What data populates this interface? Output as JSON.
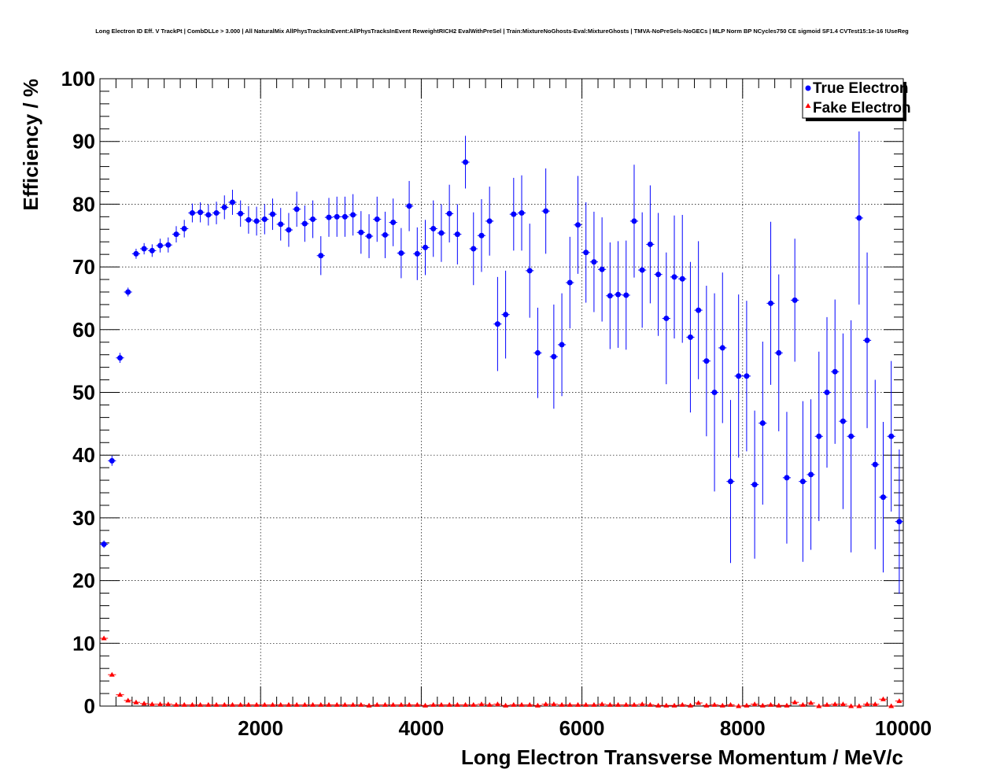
{
  "chart_data": {
    "type": "scatter",
    "title": "Long Electron ID Eff. V TrackPt | CombDLLe > 3.000 | All NaturalMix AllPhysTracksInEvent:AllPhysTracksInEvent ReweightRICH2 EvalWithPreSel | Train:MixtureNoGhosts-Eval:MixtureGhosts | TMVA-NoPreSels-NoGECs | MLP Norm BP NCycles750 CE sigmoid SF1.4 CVTest15:1e-16 !UseReg",
    "xlabel": "Long Electron Transverse Momentum / MeV/c",
    "ylabel": "Efficiency / %",
    "xlim": [
      0,
      10000
    ],
    "ylim": [
      0,
      100
    ],
    "x_ticks": [
      2000,
      4000,
      6000,
      8000,
      10000
    ],
    "y_ticks": [
      0,
      10,
      20,
      30,
      40,
      50,
      60,
      70,
      80,
      90,
      100
    ],
    "grid": true,
    "legend_position": "top-right",
    "series": [
      {
        "name": "True Electron",
        "color": "#0000ff",
        "marker": "circle",
        "x": [
          50,
          150,
          250,
          350,
          450,
          550,
          650,
          750,
          850,
          950,
          1050,
          1150,
          1250,
          1350,
          1450,
          1550,
          1650,
          1750,
          1850,
          1950,
          2050,
          2150,
          2250,
          2350,
          2450,
          2550,
          2650,
          2750,
          2850,
          2950,
          3050,
          3150,
          3250,
          3350,
          3450,
          3550,
          3650,
          3750,
          3850,
          3950,
          4050,
          4150,
          4250,
          4350,
          4450,
          4550,
          4650,
          4750,
          4850,
          4950,
          5050,
          5150,
          5250,
          5350,
          5450,
          5550,
          5650,
          5750,
          5850,
          5950,
          6050,
          6150,
          6250,
          6350,
          6450,
          6550,
          6650,
          6750,
          6850,
          6950,
          7050,
          7150,
          7250,
          7350,
          7450,
          7550,
          7650,
          7750,
          7850,
          7950,
          8050,
          8150,
          8250,
          8350,
          8450,
          8550,
          8650,
          8750,
          8850,
          8950,
          9050,
          9150,
          9250,
          9350,
          9450,
          9550,
          9650,
          9750,
          9850,
          9950
        ],
        "y": [
          25.8,
          39.1,
          55.5,
          66.0,
          72.1,
          72.9,
          72.6,
          73.4,
          73.5,
          75.2,
          76.1,
          78.6,
          78.7,
          78.3,
          78.6,
          79.5,
          80.3,
          78.5,
          77.5,
          77.3,
          77.6,
          78.4,
          76.8,
          75.9,
          79.2,
          76.9,
          77.6,
          71.8,
          77.9,
          78.0,
          78.0,
          78.3,
          75.5,
          74.9,
          77.6,
          75.1,
          77.1,
          72.2,
          79.7,
          72.1,
          73.1,
          76.1,
          75.4,
          78.5,
          75.2,
          86.7,
          72.9,
          75.0,
          77.3,
          60.9,
          62.4,
          78.4,
          78.6,
          69.4,
          56.3,
          78.9,
          55.7,
          57.6,
          67.5,
          76.7,
          72.3,
          70.8,
          69.6,
          65.4,
          65.6,
          65.5,
          77.3,
          69.5,
          73.6,
          68.8,
          61.8,
          68.4,
          68.1,
          58.8,
          63.1,
          55.0,
          50.0,
          57.1,
          35.8,
          52.6,
          52.6,
          35.3,
          45.1,
          64.2,
          56.3,
          36.4,
          64.7,
          35.8,
          36.9,
          43.0,
          50.0,
          53.3,
          45.4,
          43.0,
          77.8,
          58.3,
          38.5,
          33.3,
          43.0,
          29.4
        ],
        "y_err": [
          0.6,
          0.8,
          0.8,
          0.7,
          0.8,
          0.9,
          1.0,
          1.1,
          1.2,
          1.3,
          1.4,
          1.5,
          1.6,
          1.7,
          1.8,
          1.9,
          2.0,
          2.1,
          2.2,
          2.3,
          2.4,
          2.5,
          2.6,
          2.7,
          2.8,
          2.9,
          3.0,
          3.1,
          3.1,
          3.2,
          3.2,
          3.3,
          3.4,
          3.5,
          3.6,
          3.7,
          3.8,
          4.0,
          4.0,
          4.2,
          4.4,
          4.5,
          4.6,
          4.6,
          4.8,
          4.2,
          5.8,
          5.8,
          5.5,
          7.5,
          7.0,
          5.8,
          6.0,
          7.5,
          7.2,
          6.8,
          8.3,
          8.2,
          7.3,
          7.8,
          8.0,
          8.0,
          8.3,
          8.5,
          8.5,
          8.7,
          9.0,
          9.2,
          9.4,
          9.8,
          10.5,
          9.8,
          10.2,
          12.0,
          11.0,
          12.0,
          15.8,
          12.0,
          13.0,
          13.0,
          12.0,
          11.8,
          13.0,
          13.0,
          12.5,
          10.5,
          9.8,
          12.8,
          12.0,
          13.5,
          12.0,
          11.5,
          14.0,
          18.5,
          13.8,
          14.0,
          13.5,
          12.0,
          12.0,
          11.5
        ]
      },
      {
        "name": "Fake Electron",
        "color": "#ff0000",
        "marker": "triangle",
        "x": [
          50,
          150,
          250,
          350,
          450,
          550,
          650,
          750,
          850,
          950,
          1050,
          1150,
          1250,
          1350,
          1450,
          1550,
          1650,
          1750,
          1850,
          1950,
          2050,
          2150,
          2250,
          2350,
          2450,
          2550,
          2650,
          2750,
          2850,
          2950,
          3050,
          3150,
          3250,
          3350,
          3450,
          3550,
          3650,
          3750,
          3850,
          3950,
          4050,
          4150,
          4250,
          4350,
          4450,
          4550,
          4650,
          4750,
          4850,
          4950,
          5050,
          5150,
          5250,
          5350,
          5450,
          5550,
          5650,
          5750,
          5850,
          5950,
          6050,
          6150,
          6250,
          6350,
          6450,
          6550,
          6650,
          6750,
          6850,
          6950,
          7050,
          7150,
          7250,
          7350,
          7450,
          7550,
          7650,
          7750,
          7850,
          7950,
          8050,
          8150,
          8250,
          8350,
          8450,
          8550,
          8650,
          8750,
          8850,
          8950,
          9050,
          9150,
          9250,
          9350,
          9450,
          9550,
          9650,
          9750,
          9850,
          9950
        ],
        "y": [
          10.8,
          5.0,
          1.8,
          0.9,
          0.6,
          0.4,
          0.3,
          0.3,
          0.3,
          0.2,
          0.2,
          0.2,
          0.2,
          0.2,
          0.2,
          0.2,
          0.2,
          0.2,
          0.2,
          0.2,
          0.2,
          0.2,
          0.2,
          0.2,
          0.2,
          0.2,
          0.2,
          0.2,
          0.2,
          0.2,
          0.2,
          0.2,
          0.2,
          0.1,
          0.2,
          0.2,
          0.2,
          0.2,
          0.2,
          0.2,
          0.1,
          0.2,
          0.2,
          0.2,
          0.2,
          0.2,
          0.2,
          0.3,
          0.2,
          0.3,
          0.1,
          0.2,
          0.2,
          0.2,
          0.1,
          0.3,
          0.3,
          0.2,
          0.2,
          0.2,
          0.2,
          0.2,
          0.3,
          0.2,
          0.2,
          0.2,
          0.2,
          0.3,
          0.2,
          0.1,
          0.1,
          0.1,
          0.2,
          0.1,
          0.5,
          0.1,
          0.2,
          0.1,
          0.2,
          0.0,
          0.1,
          0.3,
          0.1,
          0.2,
          0.1,
          0.1,
          0.6,
          0.2,
          0.5,
          0.0,
          0.2,
          0.3,
          0.3,
          0.0,
          0.0,
          0.3,
          0.3,
          1.1,
          0.0,
          0.8
        ]
      }
    ]
  }
}
